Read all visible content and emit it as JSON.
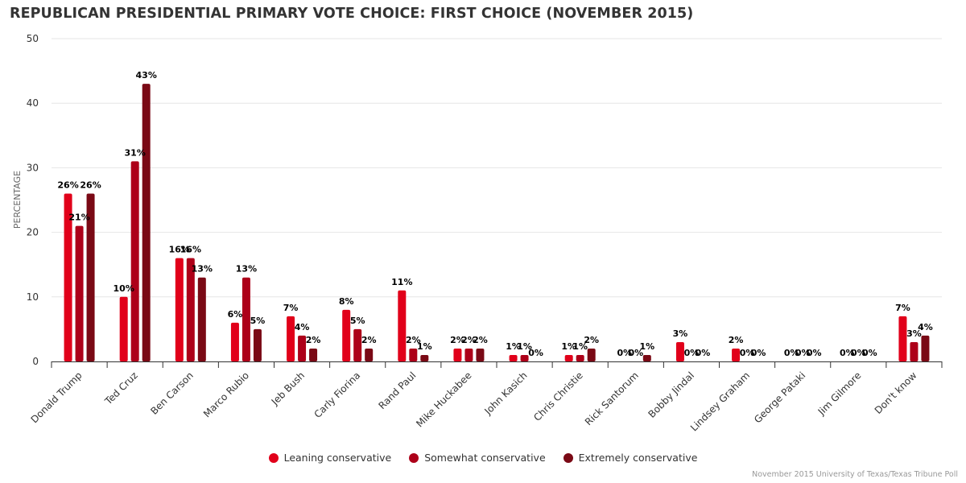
{
  "chart_data": {
    "type": "bar",
    "title": "REPUBLICAN PRESIDENTIAL PRIMARY VOTE CHOICE: FIRST CHOICE (NOVEMBER 2015)",
    "xlabel": "",
    "ylabel": "PERCENTAGE",
    "ylim": [
      0,
      50
    ],
    "yticks": [
      "0",
      "10",
      "20",
      "30",
      "40",
      "50"
    ],
    "grid": true,
    "legend_position": "bottom",
    "categories": [
      "Donald Trump",
      "Ted Cruz",
      "Ben Carson",
      "Marco Rubio",
      "Jeb Bush",
      "Carly Fiorina",
      "Rand Paul",
      "Mike Huckabee",
      "John Kasich",
      "Chris Christie",
      "Rick Santorum",
      "Bobby Jindal",
      "Lindsey Graham",
      "George Pataki",
      "Jim Gilmore",
      "Don't know"
    ],
    "series": [
      {
        "name": "Leaning conservative",
        "color": "#e1001a",
        "values": [
          26,
          10,
          16,
          6,
          7,
          8,
          11,
          2,
          1,
          1,
          0,
          3,
          2,
          0,
          0,
          7
        ]
      },
      {
        "name": "Somewhat conservative",
        "color": "#ad0019",
        "values": [
          21,
          31,
          16,
          13,
          4,
          5,
          2,
          2,
          1,
          1,
          0,
          0,
          0,
          0,
          0,
          3
        ]
      },
      {
        "name": "Extremely conservative",
        "color": "#7a0915",
        "values": [
          26,
          43,
          13,
          5,
          2,
          2,
          1,
          2,
          0,
          2,
          1,
          0,
          0,
          0,
          0,
          4
        ]
      }
    ],
    "value_suffix": "%"
  },
  "source": "November 2015 University of Texas/Texas Tribune Poll"
}
